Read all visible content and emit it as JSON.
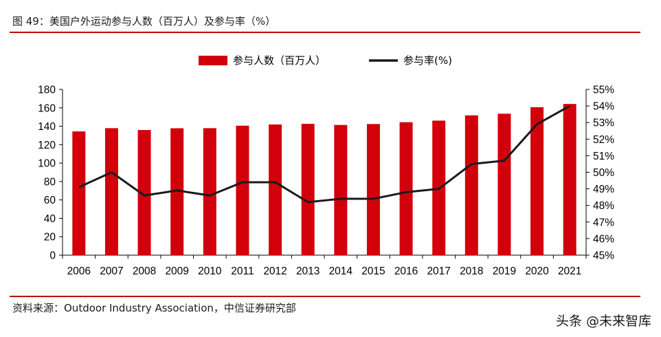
{
  "figure": {
    "title": "图 49：美国户外运动参与人数（百万人）及参与率（%）",
    "source": "资料来源：Outdoor Industry Association，中信证券研究部",
    "watermark": "头条 @未来智库"
  },
  "chart_data": {
    "type": "bar",
    "categories": [
      "2006",
      "2007",
      "2008",
      "2009",
      "2010",
      "2011",
      "2012",
      "2013",
      "2014",
      "2015",
      "2016",
      "2017",
      "2018",
      "2019",
      "2020",
      "2021"
    ],
    "series": [
      {
        "name": "参与人数（百万人）",
        "type": "bar",
        "axis": "left",
        "color": "#d2000b",
        "values": [
          134.4,
          137.9,
          135.9,
          137.8,
          137.9,
          140.6,
          141.9,
          142.6,
          141.4,
          142.4,
          144.4,
          146.1,
          151.8,
          153.6,
          160.7,
          164.2
        ]
      },
      {
        "name": "参与率(%)",
        "type": "line",
        "axis": "right",
        "color": "#1a1a1a",
        "values": [
          49.1,
          50.0,
          48.6,
          48.9,
          48.6,
          49.4,
          49.4,
          48.2,
          48.4,
          48.4,
          48.8,
          49.0,
          50.5,
          50.7,
          52.9,
          54.0
        ]
      }
    ],
    "yleft": {
      "ylim": [
        0,
        180
      ],
      "ticks": [
        0,
        20,
        40,
        60,
        80,
        100,
        120,
        140,
        160,
        180
      ]
    },
    "yright": {
      "ylim": [
        45,
        55
      ],
      "ticks": [
        "45%",
        "46%",
        "47%",
        "48%",
        "49%",
        "50%",
        "51%",
        "52%",
        "53%",
        "54%",
        "55%"
      ]
    },
    "legend": "top-center",
    "grid": false
  }
}
